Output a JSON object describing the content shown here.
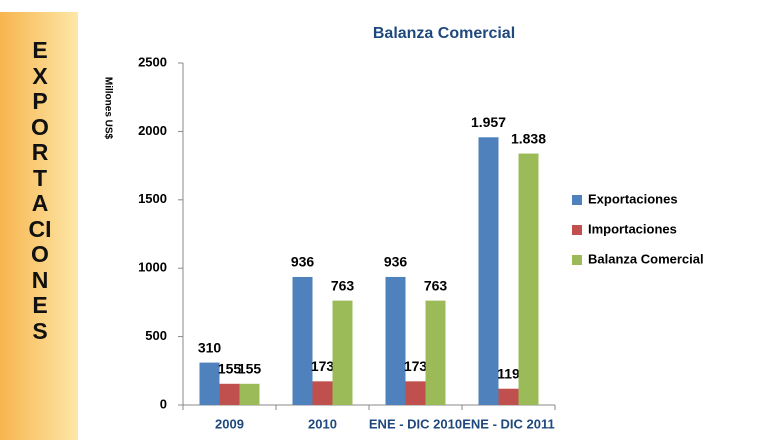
{
  "side_label": "EXPORTACIONES",
  "chart_data": {
    "type": "bar",
    "title": "Balanza Comercial",
    "y_label": "Millones US$",
    "categories": [
      "2009",
      "2010",
      "ENE - DIC 2010",
      "ENE - DIC 2011"
    ],
    "series": [
      {
        "name": "Exportaciones",
        "color": "#4f81bd",
        "values": [
          310,
          936,
          936,
          1957
        ],
        "value_labels": [
          "310",
          "936",
          "936",
          "1.957"
        ]
      },
      {
        "name": "Importaciones",
        "color": "#c0504d",
        "values": [
          155,
          173,
          173,
          119
        ]
      },
      {
        "name": "Balanza Comercial",
        "color": "#9bbb59",
        "values": [
          155,
          763,
          763,
          1838
        ],
        "value_labels": [
          "155",
          "763",
          "763",
          "1.838"
        ]
      }
    ],
    "ylim": [
      0,
      2500
    ],
    "yticks": [
      0,
      500,
      1000,
      1500,
      2000,
      2500
    ],
    "legend": "right"
  }
}
